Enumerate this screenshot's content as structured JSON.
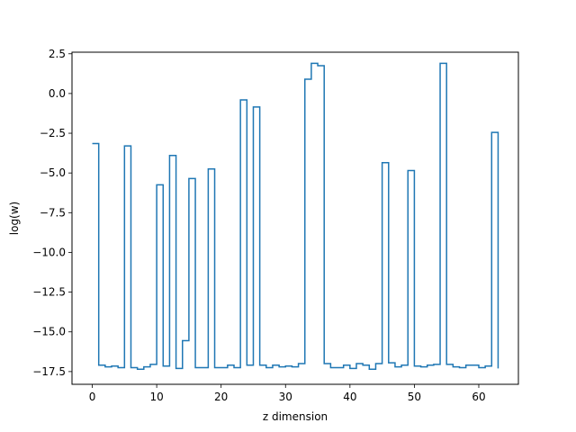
{
  "chart_data": {
    "type": "line",
    "drawstyle": "steps-post",
    "title": "",
    "xlabel": "z dimension",
    "ylabel": "log(w)",
    "xlim": [
      -3.15,
      66.15
    ],
    "ylim": [
      -18.3,
      2.6
    ],
    "xticks": [
      0,
      10,
      20,
      30,
      40,
      50,
      60
    ],
    "yticks": [
      2.5,
      0.0,
      -2.5,
      -5.0,
      -7.5,
      -10.0,
      -12.5,
      -15.0,
      -17.5
    ],
    "yticklabels": [
      "2.5",
      "0.0",
      "−2.5",
      "−5.0",
      "−7.5",
      "−10.0",
      "−12.5",
      "−15.0",
      "−17.5"
    ],
    "grid": false,
    "color": "#1f77b4",
    "x": [
      0,
      1,
      2,
      3,
      4,
      5,
      6,
      7,
      8,
      9,
      10,
      11,
      12,
      13,
      14,
      15,
      16,
      17,
      18,
      19,
      20,
      21,
      22,
      23,
      24,
      25,
      26,
      27,
      28,
      29,
      30,
      31,
      32,
      33,
      34,
      35,
      36,
      37,
      38,
      39,
      40,
      41,
      42,
      43,
      44,
      45,
      46,
      47,
      48,
      49,
      50,
      51,
      52,
      53,
      54,
      55,
      56,
      57,
      58,
      59,
      60,
      61,
      62,
      63
    ],
    "y": [
      -3.15,
      -17.1,
      -17.2,
      -17.15,
      -17.25,
      -3.3,
      -17.25,
      -17.35,
      -17.2,
      -17.05,
      -5.75,
      -17.15,
      -3.9,
      -17.3,
      -15.55,
      -5.35,
      -17.25,
      -17.25,
      -4.75,
      -17.25,
      -17.25,
      -17.1,
      -17.25,
      -0.4,
      -17.1,
      -0.85,
      -17.1,
      -17.25,
      -17.1,
      -17.2,
      -17.15,
      -17.2,
      -17.0,
      0.9,
      1.9,
      1.75,
      -17.0,
      -17.25,
      -17.25,
      -17.1,
      -17.3,
      -17.0,
      -17.1,
      -17.35,
      -17.0,
      -4.35,
      -16.95,
      -17.2,
      -17.1,
      -4.85,
      -17.15,
      -17.2,
      -17.1,
      -17.05,
      1.9,
      -17.05,
      -17.2,
      -17.25,
      -17.1,
      -17.1,
      -17.25,
      -17.15,
      -2.45,
      -17.3
    ]
  }
}
